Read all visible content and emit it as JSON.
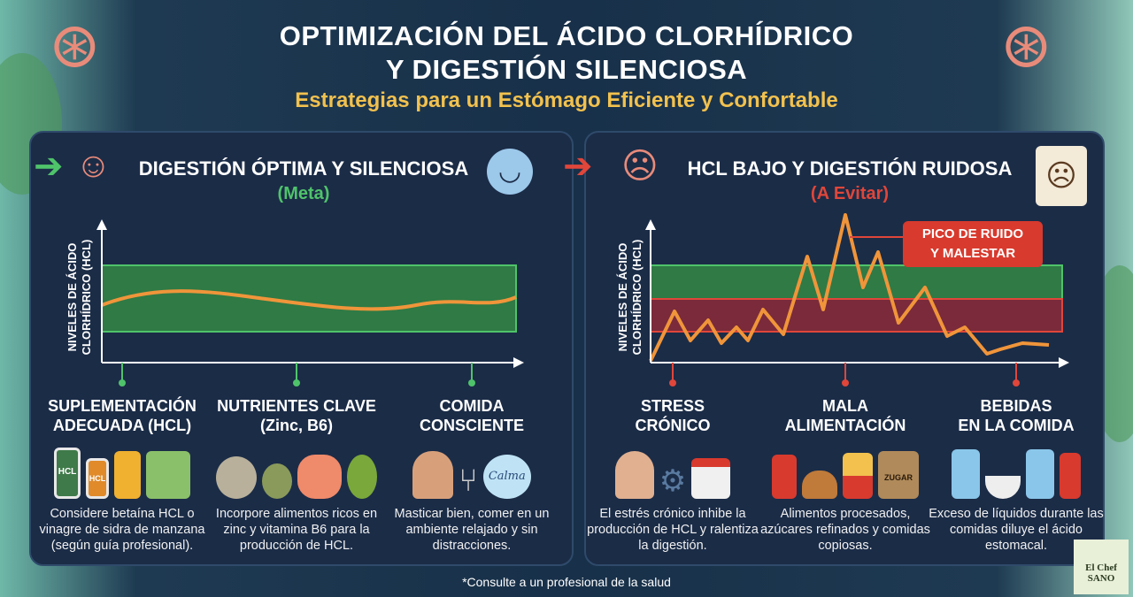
{
  "title_line1": "OPTIMIZACIÓN DEL ÁCIDO CLORHÍDRICO",
  "title_line2": "Y DIGESTIÓN SILENCIOSA",
  "subtitle": "Estrategias para un Estómago Eficiente y Confortable",
  "colors": {
    "good": "#4fc36a",
    "bad": "#e0463a",
    "curve": "#f0953a",
    "gold": "#f2c14e",
    "panel": "#1b2c47"
  },
  "left": {
    "heading": "DIGESTIÓN ÓPTIMA Y SILENCIOSA",
    "tag": "(Meta)",
    "ylabel_1": "NIVELES DE ÁCIDO",
    "ylabel_2": "CLORHÍDRICO (HCL)",
    "items": [
      {
        "title_1": "SUPLEMENTACIÓN",
        "title_2": "ADECUADA (HCL)",
        "text": "Considere betaína HCL o vinagre de sidra de manzana (según guía profesional).",
        "label_a": "HCL",
        "label_b": "HCL"
      },
      {
        "title_1": "NUTRIENTES CLAVE",
        "title_2": "(Zinc, B6)",
        "text": "Incorpore alimentos ricos en zinc y vitamina B6 para la producción de HCL."
      },
      {
        "title_1": "COMIDA",
        "title_2": "CONSCIENTE",
        "text": "Masticar bien, comer en un ambiente relajado y sin distracciones.",
        "bubble": "Calma"
      }
    ]
  },
  "right": {
    "heading": "HCL BAJO Y DIGESTIÓN RUIDOSA",
    "tag": "(A Evitar)",
    "ylabel_1": "NIVELES DE ÁCIDO",
    "ylabel_2": "CLORHÍDRICO (HCL)",
    "callout_1": "PICO DE RUIDO",
    "callout_2": "Y MALESTAR",
    "items": [
      {
        "title_1": "STRESS",
        "title_2": "CRÓNICO",
        "text": "El estrés crónico inhibe la producción de HCL y ralentiza la digestión."
      },
      {
        "title_1": "MALA",
        "title_2": "ALIMENTACIÓN",
        "text": "Alimentos procesados, azúcares refinados y comidas copiosas.",
        "sack": "ZUGAR"
      },
      {
        "title_1": "BEBIDAS",
        "title_2": "EN LA COMIDA",
        "text": "Exceso de líquidos durante las comidas diluye el ácido estomacal."
      }
    ]
  },
  "footnote": "*Consulte a un profesional de la salud",
  "logo": "El Chef SANO"
}
